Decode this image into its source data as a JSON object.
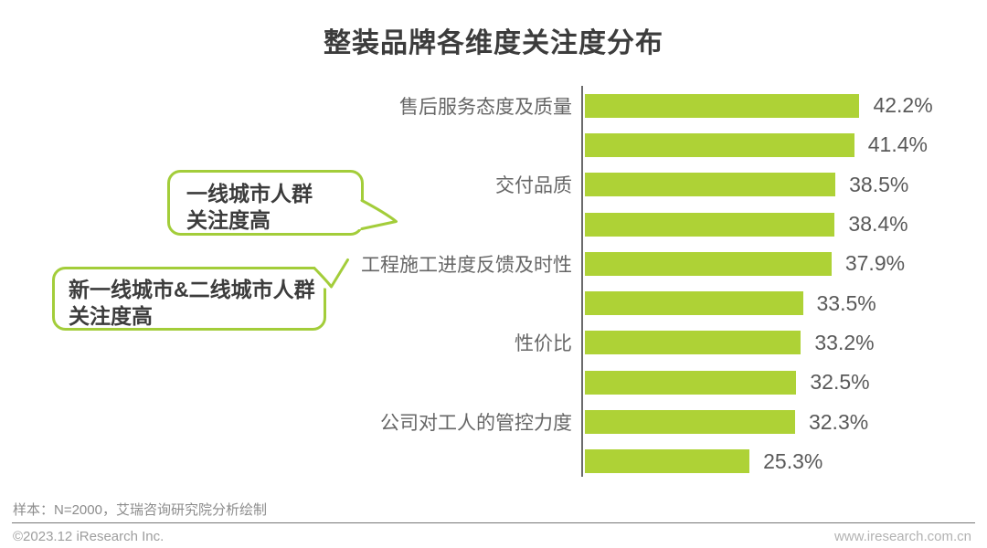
{
  "title": "整装品牌各维度关注度分布",
  "chart_data": {
    "type": "bar",
    "orientation": "horizontal",
    "title": "整装品牌各维度关注度分布",
    "categories": [
      "售后服务态度及质量",
      "",
      "交付品质",
      "",
      "工程施工进度反馈及时性",
      "",
      "性价比",
      "",
      "公司对工人的管控力度",
      ""
    ],
    "values": [
      42.2,
      41.4,
      38.5,
      38.4,
      37.9,
      33.5,
      33.2,
      32.5,
      32.3,
      25.3
    ],
    "value_labels": [
      "42.2%",
      "41.4%",
      "38.5%",
      "38.4%",
      "37.9%",
      "33.5%",
      "33.2%",
      "32.5%",
      "32.3%",
      "25.3%"
    ],
    "xlim": [
      0,
      45
    ],
    "grid": false,
    "legend": false,
    "bar_color": "#aed236"
  },
  "callouts": [
    {
      "lines": [
        "一线城市人群",
        "关注度高"
      ]
    },
    {
      "lines": [
        "新一线城市&二线城市人群",
        "关注度高"
      ]
    }
  ],
  "footer": {
    "sample_note": "样本：N=2000，艾瑞咨询研究院分析绘制",
    "copyright": "©2023.12 iResearch Inc.",
    "website": "www.iresearch.com.cn"
  },
  "colors": {
    "bar": "#aed236",
    "callout_border": "#a3cd3a",
    "title_text": "#3c3c3c",
    "category_text": "#666666",
    "value_text": "#595959",
    "axis_line": "#6b6b6b"
  }
}
